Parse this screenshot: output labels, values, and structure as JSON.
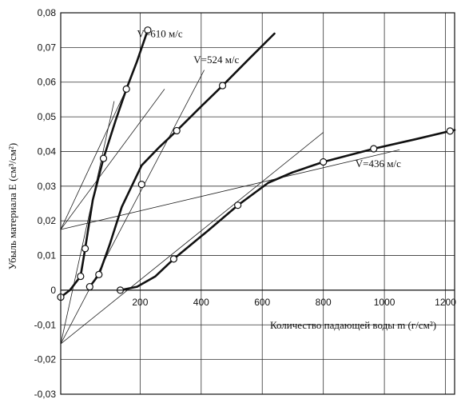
{
  "chart_data": {
    "type": "scatter",
    "xlabel": "Количество падающей воды  m (г/см²)",
    "ylabel": "Убыль материала  E (см³/см²)",
    "xlim": [
      -60,
      1230
    ],
    "ylim": [
      -0.03,
      0.08
    ],
    "x_ticks": [
      200,
      400,
      600,
      800,
      1000,
      1200
    ],
    "y_ticks": [
      -0.03,
      -0.02,
      -0.01,
      0,
      0.01,
      0.02,
      0.03,
      0.04,
      0.05,
      0.06,
      0.07,
      0.08
    ],
    "y_tick_labels": [
      "-0,03",
      "-0,02",
      "-0,01",
      "0",
      "0,01",
      "0,02",
      "0,03",
      "0,04",
      "0,05",
      "0,06",
      "0,07",
      "0,08"
    ],
    "grid": true,
    "series": [
      {
        "name": "V=610 м/с",
        "label_pos": {
          "x": 190,
          "y": 0.073
        },
        "points": [
          {
            "x": -60,
            "y": -0.002
          },
          {
            "x": 5,
            "y": 0.004
          },
          {
            "x": 20,
            "y": 0.012
          },
          {
            "x": 80,
            "y": 0.038
          },
          {
            "x": 155,
            "y": 0.058
          },
          {
            "x": 225,
            "y": 0.075
          }
        ],
        "curve": [
          {
            "x": -60,
            "y": -0.002
          },
          {
            "x": -30,
            "y": 0.0
          },
          {
            "x": 5,
            "y": 0.004
          },
          {
            "x": 20,
            "y": 0.012
          },
          {
            "x": 45,
            "y": 0.026
          },
          {
            "x": 80,
            "y": 0.038
          },
          {
            "x": 120,
            "y": 0.049
          },
          {
            "x": 155,
            "y": 0.058
          },
          {
            "x": 190,
            "y": 0.066
          },
          {
            "x": 225,
            "y": 0.075
          }
        ]
      },
      {
        "name": "V=524 м/с",
        "label_pos": {
          "x": 375,
          "y": 0.0655
        },
        "points": [
          {
            "x": 35,
            "y": 0.001
          },
          {
            "x": 65,
            "y": 0.0045
          },
          {
            "x": 205,
            "y": 0.0305
          },
          {
            "x": 320,
            "y": 0.046
          },
          {
            "x": 470,
            "y": 0.059
          }
        ],
        "curve": [
          {
            "x": 35,
            "y": 0.001
          },
          {
            "x": 65,
            "y": 0.0045
          },
          {
            "x": 100,
            "y": 0.013
          },
          {
            "x": 140,
            "y": 0.024
          },
          {
            "x": 205,
            "y": 0.036
          },
          {
            "x": 260,
            "y": 0.041
          },
          {
            "x": 320,
            "y": 0.046
          },
          {
            "x": 400,
            "y": 0.053
          },
          {
            "x": 470,
            "y": 0.059
          },
          {
            "x": 560,
            "y": 0.067
          },
          {
            "x": 640,
            "y": 0.074
          }
        ]
      },
      {
        "name": "V=436 м/с",
        "label_pos": {
          "x": 905,
          "y": 0.0355
        },
        "points": [
          {
            "x": 135,
            "y": 0.0
          },
          {
            "x": 310,
            "y": 0.009
          },
          {
            "x": 520,
            "y": 0.0245
          },
          {
            "x": 800,
            "y": 0.037
          },
          {
            "x": 965,
            "y": 0.0408
          },
          {
            "x": 1215,
            "y": 0.0459
          }
        ],
        "curve": [
          {
            "x": 135,
            "y": 0.0
          },
          {
            "x": 190,
            "y": 0.001
          },
          {
            "x": 250,
            "y": 0.004
          },
          {
            "x": 310,
            "y": 0.009
          },
          {
            "x": 420,
            "y": 0.017
          },
          {
            "x": 520,
            "y": 0.0245
          },
          {
            "x": 620,
            "y": 0.031
          },
          {
            "x": 700,
            "y": 0.034
          },
          {
            "x": 800,
            "y": 0.037
          },
          {
            "x": 965,
            "y": 0.0408
          },
          {
            "x": 1100,
            "y": 0.0435
          },
          {
            "x": 1215,
            "y": 0.0459
          },
          {
            "x": 1230,
            "y": 0.0462
          }
        ]
      }
    ],
    "tangent_lines": [
      {
        "from": {
          "x": -60,
          "y": 0.0175
        },
        "to": {
          "x": 155,
          "y": 0.058
        }
      },
      {
        "from": {
          "x": -60,
          "y": 0.0175
        },
        "to": {
          "x": 280,
          "y": 0.058
        }
      },
      {
        "from": {
          "x": -60,
          "y": 0.0175
        },
        "to": {
          "x": 1050,
          "y": 0.0405
        }
      },
      {
        "from": {
          "x": -60,
          "y": -0.0155
        },
        "to": {
          "x": 115,
          "y": 0.0545
        }
      },
      {
        "from": {
          "x": -60,
          "y": -0.0155
        },
        "to": {
          "x": 410,
          "y": 0.0635
        }
      },
      {
        "from": {
          "x": -60,
          "y": -0.0155
        },
        "to": {
          "x": 800,
          "y": 0.0455
        }
      }
    ]
  }
}
